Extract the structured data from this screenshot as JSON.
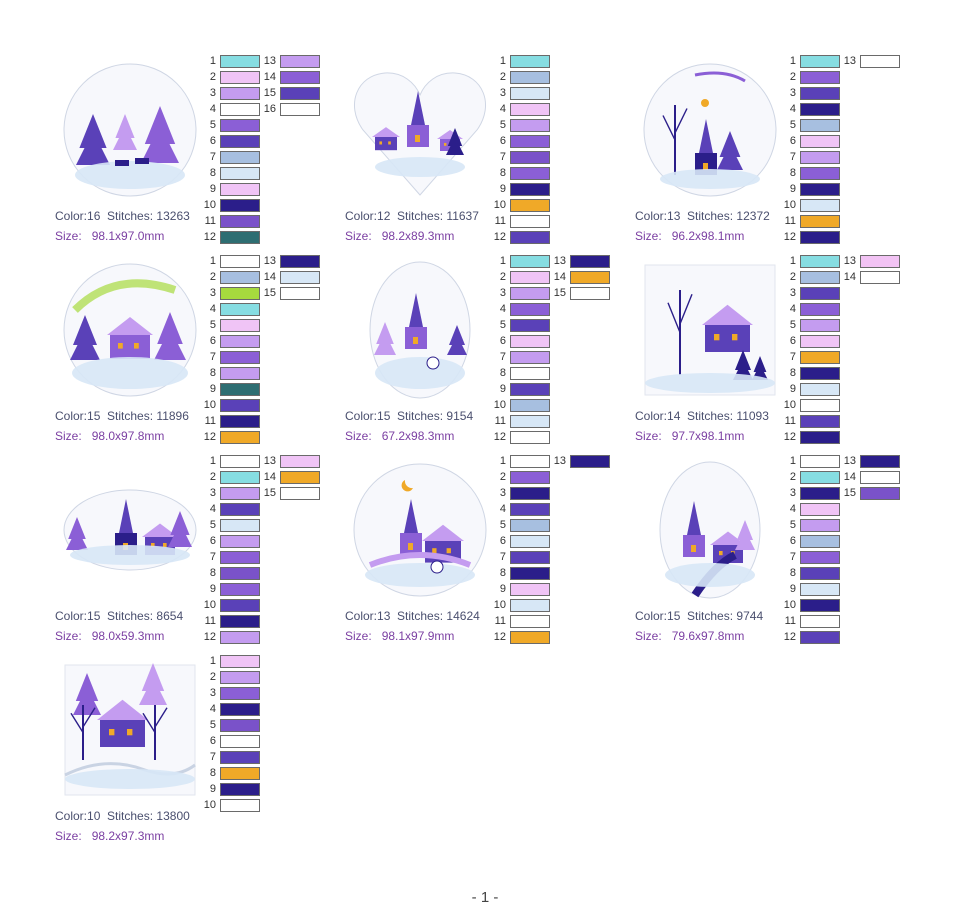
{
  "palette": {
    "c_cyan": "#86dde2",
    "c_lilac": "#f0c4f6",
    "c_lav": "#c49cf0",
    "c_white": "#ffffff",
    "c_pur": "#8b5fd6",
    "c_dpur": "#5a41b8",
    "c_steel": "#a7bfe0",
    "c_ice": "#d7e7f6",
    "c_navy": "#2b1e8a",
    "c_teal": "#2e6e72",
    "c_orange": "#f0a928",
    "c_lime": "#a6da3e",
    "c_pink": "#f2c3f4"
  },
  "labels": {
    "color": "Color:",
    "stitches": "Stitches:",
    "size": "Size:"
  },
  "designs": [
    {
      "colors": "16",
      "stitches": "13263",
      "size": "98.1x97.0mm",
      "swatches": [
        "#86dde2",
        "#f0c4f6",
        "#c49cf0",
        "#ffffff",
        "#8b5fd6",
        "#5a41b8",
        "#a7bfe0",
        "#d7e7f6",
        "#f0c4f6",
        "#2b1e8a",
        "#7a52c9",
        "#2e6e72",
        "#c49cf0",
        "#8b5fd6",
        "#5a41b8",
        "#ffffff"
      ]
    },
    {
      "colors": "12",
      "stitches": "11637",
      "size": "98.2x89.3mm",
      "swatches": [
        "#86dde2",
        "#a7bfe0",
        "#d7e7f6",
        "#f0c4f6",
        "#c49cf0",
        "#8b5fd6",
        "#7a52c9",
        "#8b5fd6",
        "#2b1e8a",
        "#f0a928",
        "#ffffff",
        "#5a41b8"
      ]
    },
    {
      "colors": "13",
      "stitches": "12372",
      "size": "96.2x98.1mm",
      "swatches": [
        "#86dde2",
        "#8b5fd6",
        "#5a41b8",
        "#2b1e8a",
        "#a7bfe0",
        "#f0c4f6",
        "#c49cf0",
        "#8b5fd6",
        "#2b1e8a",
        "#d7e7f6",
        "#f0a928",
        "#2b1e8a",
        "#ffffff"
      ]
    },
    {
      "colors": "15",
      "stitches": "11896",
      "size": "98.0x97.8mm",
      "swatches": [
        "#ffffff",
        "#a7bfe0",
        "#a6da3e",
        "#86dde2",
        "#f0c4f6",
        "#c49cf0",
        "#8b5fd6",
        "#c49cf0",
        "#2e6e72",
        "#5a41b8",
        "#2b1e8a",
        "#f0a928",
        "#2b1e8a",
        "#d7e7f6",
        "#ffffff"
      ]
    },
    {
      "colors": "15",
      "stitches": "9154",
      "size": "67.2x98.3mm",
      "swatches": [
        "#86dde2",
        "#f0c4f6",
        "#c49cf0",
        "#8b5fd6",
        "#5a41b8",
        "#f0c4f6",
        "#c49cf0",
        "#ffffff",
        "#5a41b8",
        "#a7bfe0",
        "#d7e7f6",
        "#ffffff",
        "#2b1e8a",
        "#f0a928",
        "#ffffff"
      ]
    },
    {
      "colors": "14",
      "stitches": "11093",
      "size": "97.7x98.1mm",
      "swatches": [
        "#86dde2",
        "#a7bfe0",
        "#5a41b8",
        "#8b5fd6",
        "#c49cf0",
        "#f0c4f6",
        "#f0a928",
        "#2b1e8a",
        "#d7e7f6",
        "#ffffff",
        "#5a41b8",
        "#2b1e8a",
        "#f2c3f4",
        "#ffffff"
      ]
    },
    {
      "colors": "15",
      "stitches": "8654",
      "size": "98.0x59.3mm",
      "swatches": [
        "#ffffff",
        "#86dde2",
        "#c49cf0",
        "#5a41b8",
        "#d7e7f6",
        "#c49cf0",
        "#8b5fd6",
        "#7a52c9",
        "#8b5fd6",
        "#5a41b8",
        "#2b1e8a",
        "#c49cf0",
        "#f0c4f6",
        "#f0a928",
        "#ffffff"
      ]
    },
    {
      "colors": "13",
      "stitches": "14624",
      "size": "98.1x97.9mm",
      "swatches": [
        "#ffffff",
        "#8b5fd6",
        "#2b1e8a",
        "#5a41b8",
        "#a7bfe0",
        "#d7e7f6",
        "#5a41b8",
        "#2b1e8a",
        "#f0c4f6",
        "#d7e7f6",
        "#ffffff",
        "#f0a928",
        "#2b1e8a"
      ]
    },
    {
      "colors": "15",
      "stitches": "9744",
      "size": "79.6x97.8mm",
      "swatches": [
        "#ffffff",
        "#86dde2",
        "#2b1e8a",
        "#f0c4f6",
        "#c49cf0",
        "#a7bfe0",
        "#8b5fd6",
        "#5a41b8",
        "#d7e7f6",
        "#2b1e8a",
        "#ffffff",
        "#5a41b8",
        "#2b1e8a",
        "#ffffff",
        "#7a52c9"
      ]
    },
    {
      "colors": "10",
      "stitches": "13800",
      "size": "98.2x97.3mm",
      "swatches": [
        "#f0c4f6",
        "#c49cf0",
        "#8b5fd6",
        "#2b1e8a",
        "#7a52c9",
        "#ffffff",
        "#5a41b8",
        "#f0a928",
        "#2b1e8a",
        "#ffffff"
      ]
    }
  ],
  "thumbnails": [
    "round-forest-deer-icon",
    "heart-church-village-icon",
    "round-moon-sleigh-church-icon",
    "round-aurora-cottage-icon",
    "oval-chapel-snowman-icon",
    "square-tree-cottage-icon",
    "oval-village-panorama-icon",
    "round-church-bridge-snowman-icon",
    "oval-village-path-icon",
    "square-trees-house-swirl-icon"
  ],
  "footer": {
    "page_number": "- 1 -"
  }
}
